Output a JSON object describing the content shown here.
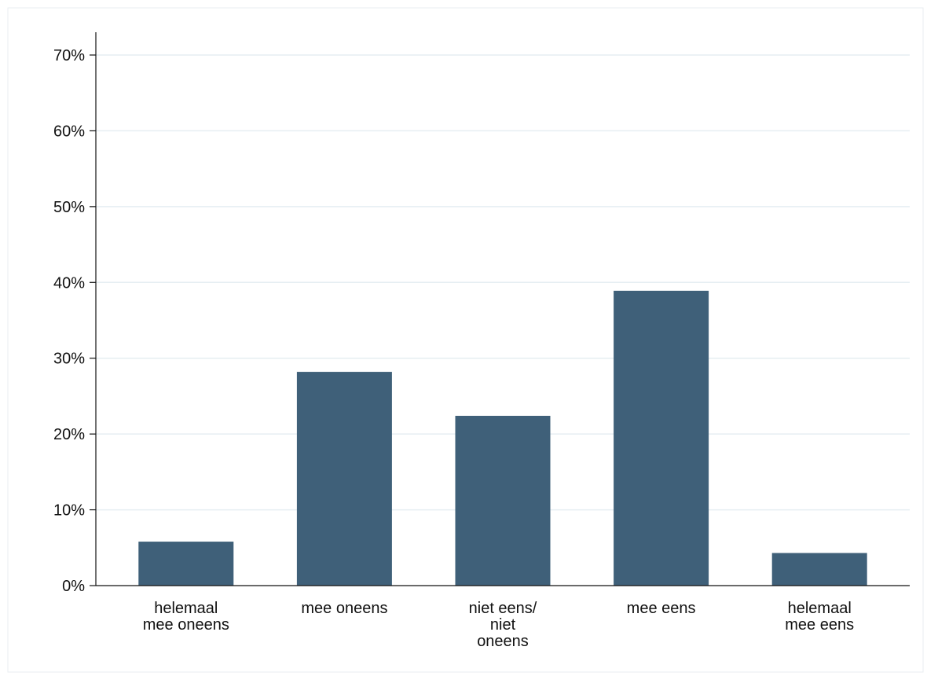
{
  "chart_data": {
    "type": "bar",
    "categories": [
      [
        "helemaal",
        "mee oneens"
      ],
      [
        "mee oneens"
      ],
      [
        "niet eens/",
        "niet",
        "oneens"
      ],
      [
        "mee eens"
      ],
      [
        "helemaal",
        "mee eens"
      ]
    ],
    "values": [
      5.8,
      28.2,
      22.4,
      38.9,
      4.3
    ],
    "y_ticks": [
      0,
      10,
      20,
      30,
      40,
      50,
      60,
      70
    ],
    "y_tick_labels": [
      "0%",
      "10%",
      "20%",
      "30%",
      "40%",
      "50%",
      "60%",
      "70%"
    ],
    "ylim": [
      0,
      70
    ],
    "grid": true,
    "bar_color": "#3f6079",
    "grid_color": "#e6eef2",
    "frame_color": "#e8eef0",
    "title": "",
    "xlabel": "",
    "ylabel": ""
  }
}
